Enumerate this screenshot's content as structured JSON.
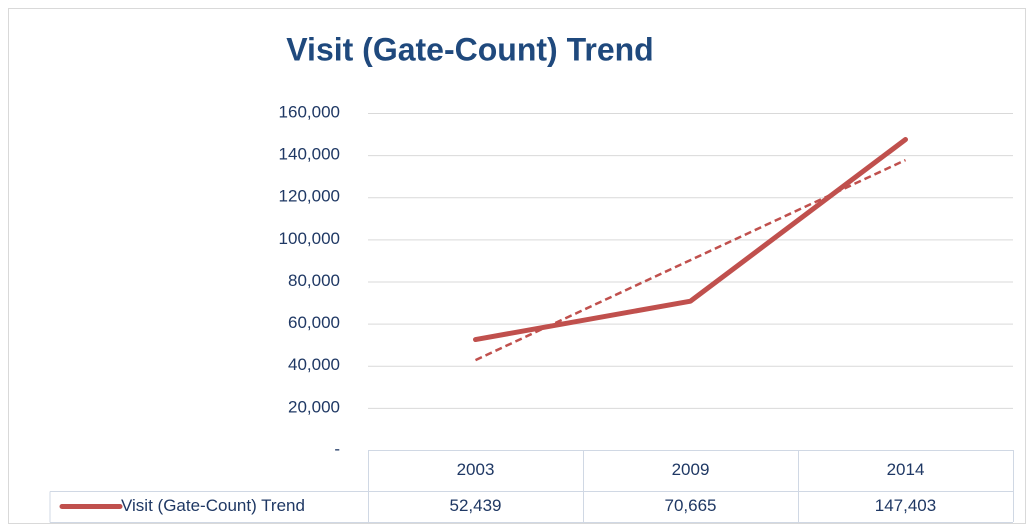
{
  "chart_data": {
    "type": "line",
    "title": "Visit (Gate-Count) Trend",
    "categories": [
      "2003",
      "2009",
      "2014"
    ],
    "series": [
      {
        "name": "Visit (Gate-Count) Trend",
        "color": "#c0504d",
        "values": [
          52439,
          70665,
          147403
        ],
        "value_labels": [
          "52,439",
          "70,665",
          "147,403"
        ]
      }
    ],
    "trendline": "linear",
    "ylim": [
      0,
      160000
    ],
    "yticks": [
      {
        "value": 0,
        "label": "-"
      },
      {
        "value": 20000,
        "label": "20,000"
      },
      {
        "value": 40000,
        "label": "40,000"
      },
      {
        "value": 60000,
        "label": "60,000"
      },
      {
        "value": 80000,
        "label": "80,000"
      },
      {
        "value": 100000,
        "label": "100,000"
      },
      {
        "value": 120000,
        "label": "120,000"
      },
      {
        "value": 140000,
        "label": "140,000"
      },
      {
        "value": 160000,
        "label": "160,000"
      }
    ],
    "grid": true
  }
}
